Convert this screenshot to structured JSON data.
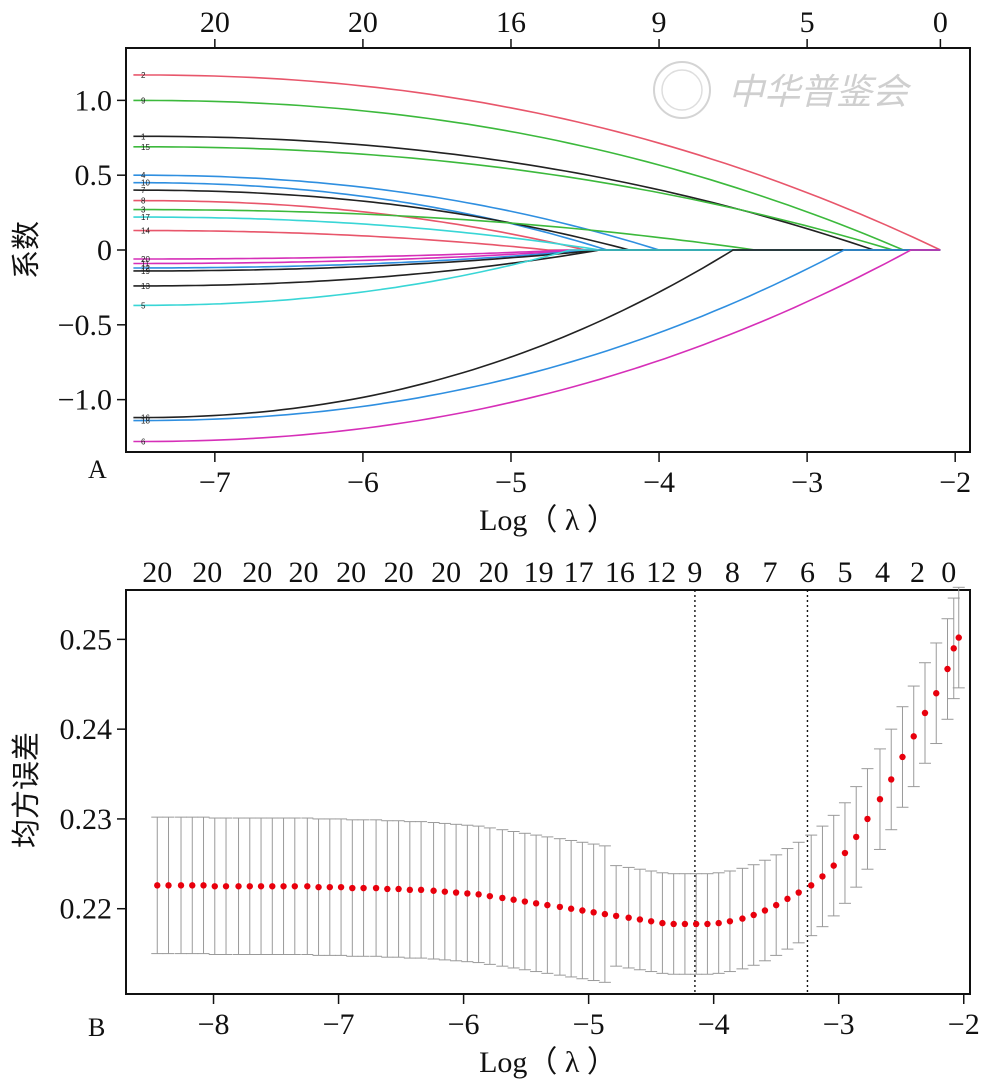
{
  "watermark": "中华普鉴会",
  "chart_data": [
    {
      "type": "line",
      "panel_label": "A",
      "xlabel": "Log（ λ ）",
      "ylabel": "系数",
      "xlim": [
        -7.6,
        -1.9
      ],
      "ylim": [
        -1.35,
        1.35
      ],
      "x_ticks": [
        "−7",
        "−6",
        "−5",
        "−4",
        "−3",
        "−2"
      ],
      "x_tick_values": [
        -7,
        -6,
        -5,
        -4,
        -3,
        -2
      ],
      "y_ticks": [
        "1.0",
        "0.5",
        "0",
        "−0.5",
        "−1.0"
      ],
      "y_tick_values": [
        1.0,
        0.5,
        0,
        -0.5,
        -1.0
      ],
      "top_ticks": [
        "20",
        "20",
        "16",
        "9",
        "5",
        "0"
      ],
      "top_tick_values": [
        -7,
        -6,
        -5,
        -4,
        -3,
        -2.1
      ],
      "grid": false,
      "series": [
        {
          "name": "2",
          "color": "#e8566b",
          "start": 1.17,
          "zero_at": -2.1
        },
        {
          "name": "9",
          "color": "#3cb93c",
          "start": 1.0,
          "zero_at": -2.35
        },
        {
          "name": "1",
          "color": "#222222",
          "start": 0.76,
          "zero_at": -2.55
        },
        {
          "name": "15",
          "color": "#3cb93c",
          "start": 0.69,
          "zero_at": -2.42
        },
        {
          "name": "4",
          "color": "#2f8fe0",
          "start": 0.5,
          "zero_at": -4.0
        },
        {
          "name": "10",
          "color": "#2f8fe0",
          "start": 0.45,
          "zero_at": -4.35
        },
        {
          "name": "7",
          "color": "#222222",
          "start": 0.4,
          "zero_at": -4.2
        },
        {
          "name": "8",
          "color": "#e8566b",
          "start": 0.33,
          "zero_at": -4.5
        },
        {
          "name": "3",
          "color": "#3cb93c",
          "start": 0.27,
          "zero_at": -3.35
        },
        {
          "name": "17",
          "color": "#39d6d6",
          "start": 0.22,
          "zero_at": -4.4
        },
        {
          "name": "14",
          "color": "#e8566b",
          "start": 0.13,
          "zero_at": -4.75
        },
        {
          "name": "20",
          "color": "#d62fb8",
          "start": -0.06,
          "zero_at": -4.6
        },
        {
          "name": "11",
          "color": "#d62fb8",
          "start": -0.09,
          "zero_at": -4.5
        },
        {
          "name": "12",
          "color": "#2f8fe0",
          "start": -0.12,
          "zero_at": -4.45
        },
        {
          "name": "19",
          "color": "#222222",
          "start": -0.14,
          "zero_at": -4.4
        },
        {
          "name": "13",
          "color": "#222222",
          "start": -0.24,
          "zero_at": -4.4
        },
        {
          "name": "5",
          "color": "#39d6d6",
          "start": -0.37,
          "zero_at": -4.6
        },
        {
          "name": "16",
          "color": "#222222",
          "start": -1.12,
          "zero_at": -3.5
        },
        {
          "name": "18",
          "color": "#2f8fe0",
          "start": -1.14,
          "zero_at": -2.75
        },
        {
          "name": "6",
          "color": "#d62fb8",
          "start": -1.28,
          "zero_at": -2.3
        }
      ]
    },
    {
      "type": "scatter",
      "panel_label": "B",
      "xlabel": "Log（ λ ）",
      "ylabel": "均方误差",
      "xlim": [
        -8.7,
        -1.95
      ],
      "ylim": [
        0.2105,
        0.2555
      ],
      "x_ticks": [
        "−8",
        "−7",
        "−6",
        "−5",
        "−4",
        "−3",
        "−2"
      ],
      "x_tick_values": [
        -8,
        -7,
        -6,
        -5,
        -4,
        -3,
        -2
      ],
      "y_ticks": [
        "0.25",
        "0.24",
        "0.23",
        "0.22"
      ],
      "y_tick_values": [
        0.25,
        0.24,
        0.23,
        0.22
      ],
      "top_ticks": [
        "20",
        "20",
        "20",
        "20",
        "20",
        "20",
        "20",
        "20",
        "19",
        "17",
        "16",
        "12",
        "9",
        "8",
        "7",
        "6",
        "5",
        "4",
        "2",
        "0"
      ],
      "top_tick_values": [
        -8.45,
        -8.05,
        -7.65,
        -7.28,
        -6.9,
        -6.52,
        -6.14,
        -5.76,
        -5.4,
        -5.08,
        -4.75,
        -4.42,
        -4.15,
        -3.85,
        -3.55,
        -3.25,
        -2.95,
        -2.65,
        -2.37,
        -2.12
      ],
      "vlines": [
        -4.15,
        -3.25
      ],
      "point_color": "#e8000d",
      "error_color": "#9a9a9a",
      "points": [
        [
          -8.45,
          0.2226,
          0.0076
        ],
        [
          -8.36,
          0.2226,
          0.0076
        ],
        [
          -8.26,
          0.2226,
          0.0076
        ],
        [
          -8.17,
          0.2226,
          0.0076
        ],
        [
          -8.08,
          0.2226,
          0.0076
        ],
        [
          -7.99,
          0.2225,
          0.0076
        ],
        [
          -7.9,
          0.2225,
          0.0076
        ],
        [
          -7.8,
          0.2225,
          0.0076
        ],
        [
          -7.71,
          0.2225,
          0.0076
        ],
        [
          -7.62,
          0.2225,
          0.0076
        ],
        [
          -7.53,
          0.2225,
          0.0076
        ],
        [
          -7.44,
          0.2225,
          0.0076
        ],
        [
          -7.35,
          0.2225,
          0.0076
        ],
        [
          -7.25,
          0.2225,
          0.0076
        ],
        [
          -7.16,
          0.2224,
          0.0076
        ],
        [
          -7.07,
          0.2224,
          0.0076
        ],
        [
          -6.98,
          0.2224,
          0.0076
        ],
        [
          -6.89,
          0.2223,
          0.0076
        ],
        [
          -6.8,
          0.2223,
          0.0076
        ],
        [
          -6.7,
          0.2223,
          0.0076
        ],
        [
          -6.61,
          0.2222,
          0.0076
        ],
        [
          -6.52,
          0.2222,
          0.0076
        ],
        [
          -6.43,
          0.2221,
          0.0076
        ],
        [
          -6.34,
          0.2221,
          0.0076
        ],
        [
          -6.24,
          0.222,
          0.0076
        ],
        [
          -6.15,
          0.2219,
          0.0076
        ],
        [
          -6.06,
          0.2218,
          0.0076
        ],
        [
          -5.97,
          0.2217,
          0.0076
        ],
        [
          -5.88,
          0.2216,
          0.0076
        ],
        [
          -5.79,
          0.2214,
          0.0076
        ],
        [
          -5.69,
          0.2212,
          0.0076
        ],
        [
          -5.6,
          0.221,
          0.0076
        ],
        [
          -5.51,
          0.2208,
          0.0076
        ],
        [
          -5.42,
          0.2206,
          0.0076
        ],
        [
          -5.33,
          0.2204,
          0.0076
        ],
        [
          -5.23,
          0.2202,
          0.0076
        ],
        [
          -5.14,
          0.22,
          0.0076
        ],
        [
          -5.05,
          0.2198,
          0.0076
        ],
        [
          -4.96,
          0.2196,
          0.0076
        ],
        [
          -4.87,
          0.2194,
          0.0076
        ],
        [
          -4.78,
          0.2192,
          0.0056
        ],
        [
          -4.68,
          0.219,
          0.0056
        ],
        [
          -4.59,
          0.2188,
          0.0056
        ],
        [
          -4.5,
          0.2186,
          0.0056
        ],
        [
          -4.41,
          0.2184,
          0.0056
        ],
        [
          -4.32,
          0.2183,
          0.0056
        ],
        [
          -4.23,
          0.2183,
          0.0056
        ],
        [
          -4.14,
          0.2183,
          0.0056
        ],
        [
          -4.05,
          0.2183,
          0.0056
        ],
        [
          -3.96,
          0.2184,
          0.0056
        ],
        [
          -3.87,
          0.2186,
          0.0056
        ],
        [
          -3.77,
          0.2189,
          0.0056
        ],
        [
          -3.68,
          0.2193,
          0.0056
        ],
        [
          -3.59,
          0.2198,
          0.0056
        ],
        [
          -3.5,
          0.2204,
          0.0056
        ],
        [
          -3.41,
          0.2211,
          0.0056
        ],
        [
          -3.32,
          0.2218,
          0.0056
        ],
        [
          -3.22,
          0.2226,
          0.0056
        ],
        [
          -3.13,
          0.2236,
          0.0056
        ],
        [
          -3.04,
          0.2248,
          0.0056
        ],
        [
          -2.95,
          0.2262,
          0.0056
        ],
        [
          -2.86,
          0.228,
          0.0056
        ],
        [
          -2.77,
          0.23,
          0.0056
        ],
        [
          -2.67,
          0.2322,
          0.0056
        ],
        [
          -2.58,
          0.2344,
          0.0056
        ],
        [
          -2.49,
          0.2369,
          0.0056
        ],
        [
          -2.4,
          0.2392,
          0.0056
        ],
        [
          -2.31,
          0.2418,
          0.0056
        ],
        [
          -2.22,
          0.244,
          0.0056
        ],
        [
          -2.13,
          0.2467,
          0.0056
        ],
        [
          -2.08,
          0.249,
          0.0056
        ],
        [
          -2.04,
          0.2502,
          0.0056
        ]
      ]
    }
  ]
}
